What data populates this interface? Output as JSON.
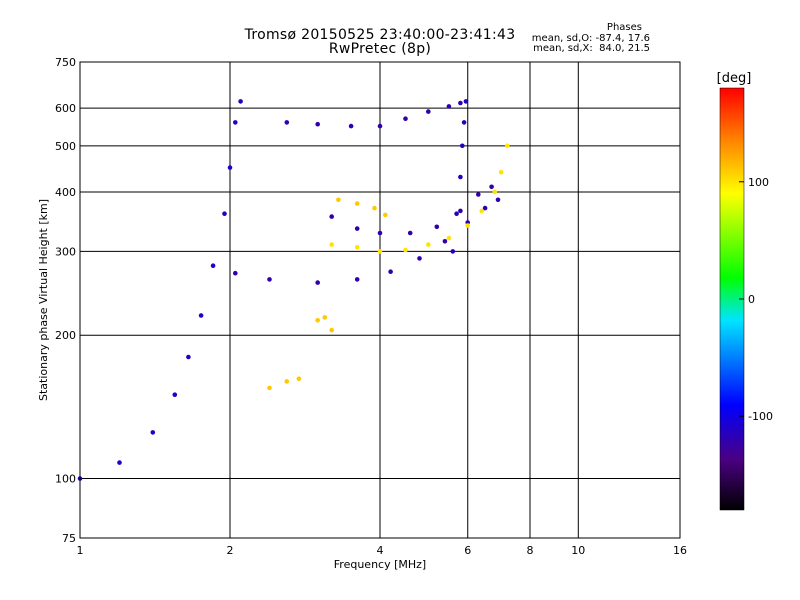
{
  "header": {
    "title": "Tromsø 20150525 23:40:00-23:41:43",
    "subtitle": "RwPretec (8p)",
    "phases_title": "Phases",
    "phases_line1": "mean, sd,O: -87.4, 17.6",
    "phases_line2": "mean, sd,X:  84.0, 21.5"
  },
  "chart_data": {
    "type": "scatter",
    "xlabel": "Frequency [MHz]",
    "ylabel": "Stationary phase Virtual Height [km]",
    "xscale": "log",
    "yscale": "log",
    "xlim": [
      1,
      16
    ],
    "ylim": [
      75,
      750
    ],
    "xticks": [
      1,
      2,
      4,
      6,
      8,
      10,
      16
    ],
    "xtick_labels": [
      "1",
      "2",
      "4",
      "6",
      "8",
      "10",
      "16"
    ],
    "yticks": [
      75,
      100,
      200,
      300,
      400,
      500,
      600,
      750
    ],
    "ytick_labels": [
      "75",
      "100",
      "200",
      "300",
      "400",
      "500",
      "600",
      "750"
    ],
    "grid": true,
    "colorbar": {
      "label": "[deg]",
      "range": [
        -180,
        180
      ],
      "ticks": [
        100,
        0,
        -100
      ],
      "tick_labels": [
        "100",
        "0",
        "-100"
      ]
    },
    "traces": [
      {
        "name": "",
        "phase": -110,
        "points": [
          [
            1.0,
            100
          ],
          [
            1.2,
            108
          ],
          [
            1.4,
            125
          ],
          [
            1.55,
            150
          ],
          [
            1.65,
            180
          ],
          [
            1.75,
            220
          ],
          [
            1.85,
            280
          ],
          [
            1.95,
            360
          ],
          [
            2.0,
            450
          ],
          [
            2.05,
            560
          ],
          [
            2.1,
            620
          ]
        ]
      },
      {
        "name": "",
        "phase": -120,
        "points": [
          [
            2.05,
            270
          ],
          [
            2.4,
            262
          ],
          [
            3.0,
            258
          ],
          [
            3.6,
            262
          ],
          [
            4.2,
            272
          ],
          [
            4.8,
            290
          ],
          [
            5.4,
            315
          ],
          [
            6.0,
            345
          ],
          [
            6.5,
            370
          ],
          [
            6.9,
            385
          ]
        ]
      },
      {
        "name": "",
        "phase": -120,
        "points": [
          [
            3.2,
            355
          ],
          [
            3.6,
            335
          ],
          [
            4.0,
            328
          ],
          [
            4.6,
            328
          ],
          [
            5.2,
            338
          ],
          [
            5.8,
            365
          ],
          [
            6.3,
            395
          ],
          [
            6.7,
            410
          ]
        ]
      },
      {
        "name": "",
        "phase": -120,
        "points": [
          [
            2.6,
            560
          ],
          [
            3.0,
            555
          ],
          [
            3.5,
            550
          ],
          [
            4.0,
            550
          ],
          [
            4.5,
            570
          ],
          [
            5.0,
            590
          ],
          [
            5.5,
            605
          ],
          [
            5.8,
            615
          ]
        ]
      },
      {
        "name": "",
        "phase": -115,
        "points": [
          [
            5.6,
            300
          ],
          [
            5.7,
            360
          ],
          [
            5.8,
            430
          ],
          [
            5.85,
            500
          ],
          [
            5.9,
            560
          ],
          [
            5.95,
            620
          ]
        ]
      },
      {
        "name": "",
        "phase": 100,
        "points": [
          [
            3.2,
            310
          ],
          [
            3.6,
            306
          ],
          [
            4.0,
            300
          ],
          [
            4.5,
            302
          ],
          [
            5.0,
            310
          ],
          [
            5.5,
            320
          ],
          [
            6.0,
            340
          ],
          [
            6.4,
            365
          ],
          [
            6.8,
            400
          ],
          [
            7.0,
            440
          ],
          [
            7.2,
            500
          ]
        ]
      },
      {
        "name": "",
        "phase": 110,
        "points": [
          [
            3.3,
            385
          ],
          [
            3.6,
            378
          ],
          [
            3.9,
            370
          ],
          [
            4.1,
            358
          ]
        ]
      },
      {
        "name": "",
        "phase": 110,
        "points": [
          [
            3.0,
            215
          ],
          [
            3.1,
            218
          ],
          [
            3.2,
            205
          ]
        ]
      },
      {
        "name": "",
        "phase": 110,
        "points": [
          [
            2.4,
            155
          ],
          [
            2.6,
            160
          ],
          [
            2.75,
            162
          ]
        ]
      }
    ]
  }
}
